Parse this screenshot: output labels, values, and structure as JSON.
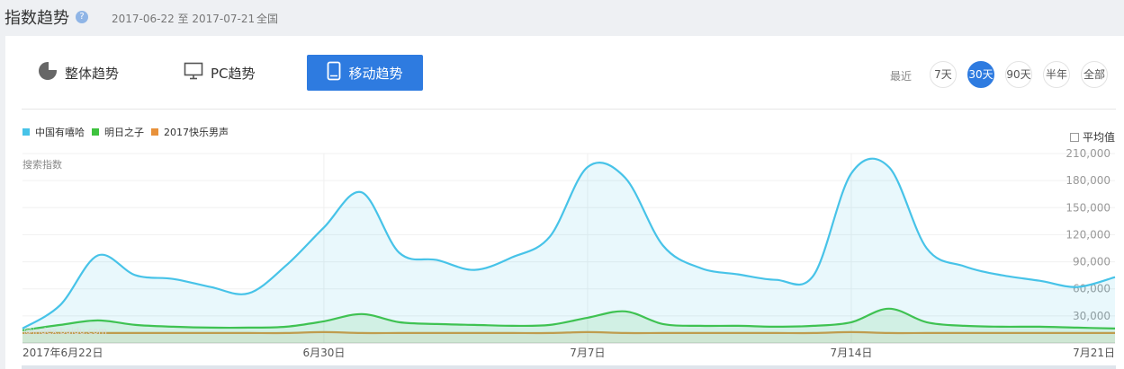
{
  "header": {
    "title": "指数趋势",
    "help_icon": "question-icon",
    "date_range": "2017-06-22 至 2017-07-21",
    "region": "全国"
  },
  "tabs": [
    {
      "label": "整体趋势",
      "icon": "pie-chart-icon",
      "active": false
    },
    {
      "label": "PC趋势",
      "icon": "monitor-icon",
      "active": false
    },
    {
      "label": "移动趋势",
      "icon": "mobile-icon",
      "active": true
    }
  ],
  "range_selector": {
    "label": "最近",
    "options": [
      "7天",
      "30天",
      "90天",
      "半年",
      "全部"
    ],
    "active": "30天"
  },
  "average_checkbox": {
    "label": "平均值",
    "checked": false
  },
  "y_axis_label": "搜索指数",
  "watermark": "@index.baidu.com",
  "colors": {
    "accent": "#2e7be0",
    "series1": "#47c3e8",
    "series2": "#3ec23e",
    "series3": "#e8913a"
  },
  "chart_data": {
    "type": "area",
    "x": [
      "2017-06-22",
      "2017-06-23",
      "2017-06-24",
      "2017-06-25",
      "2017-06-26",
      "2017-06-27",
      "2017-06-28",
      "2017-06-29",
      "2017-06-30",
      "2017-07-01",
      "2017-07-02",
      "2017-07-03",
      "2017-07-04",
      "2017-07-05",
      "2017-07-06",
      "2017-07-07",
      "2017-07-08",
      "2017-07-09",
      "2017-07-10",
      "2017-07-11",
      "2017-07-12",
      "2017-07-13",
      "2017-07-14",
      "2017-07-15",
      "2017-07-16",
      "2017-07-17",
      "2017-07-18",
      "2017-07-19",
      "2017-07-20",
      "2017-07-21"
    ],
    "x_tick_labels": [
      {
        "date": "2017-06-22",
        "label": "2017年6月22日"
      },
      {
        "date": "2017-06-30",
        "label": "6月30日"
      },
      {
        "date": "2017-07-07",
        "label": "7月7日"
      },
      {
        "date": "2017-07-14",
        "label": "7月14日"
      },
      {
        "date": "2017-07-21",
        "label": "7月21日"
      }
    ],
    "y_ticks": [
      "30,000",
      "60,000",
      "90,000",
      "120,000",
      "150,000",
      "180,000",
      "210,000"
    ],
    "ylim": [
      0,
      210000
    ],
    "series": [
      {
        "name": "中国有嘻哈",
        "values": [
          16000,
          42000,
          97000,
          75000,
          71000,
          62000,
          55000,
          86000,
          128000,
          167000,
          100000,
          92000,
          81000,
          95000,
          118000,
          195000,
          183000,
          108000,
          83000,
          76000,
          70000,
          75000,
          188000,
          195000,
          105000,
          85000,
          75000,
          69000,
          62000,
          73000
        ]
      },
      {
        "name": "明日之子",
        "values": [
          14000,
          20000,
          25000,
          20000,
          18000,
          17000,
          17000,
          18000,
          24000,
          32000,
          23000,
          21000,
          20000,
          19000,
          20000,
          28000,
          35000,
          21000,
          19000,
          19000,
          18000,
          19000,
          23000,
          38000,
          23000,
          19000,
          18000,
          18000,
          17000,
          16000
        ]
      },
      {
        "name": "2017快乐男声",
        "values": [
          11000,
          11000,
          11000,
          11000,
          11000,
          11000,
          11000,
          11000,
          12000,
          11000,
          11000,
          11000,
          11000,
          11000,
          11000,
          12000,
          11000,
          11000,
          11000,
          11000,
          11000,
          11000,
          12000,
          11000,
          11000,
          11000,
          11000,
          11000,
          11000,
          11000
        ]
      }
    ]
  }
}
